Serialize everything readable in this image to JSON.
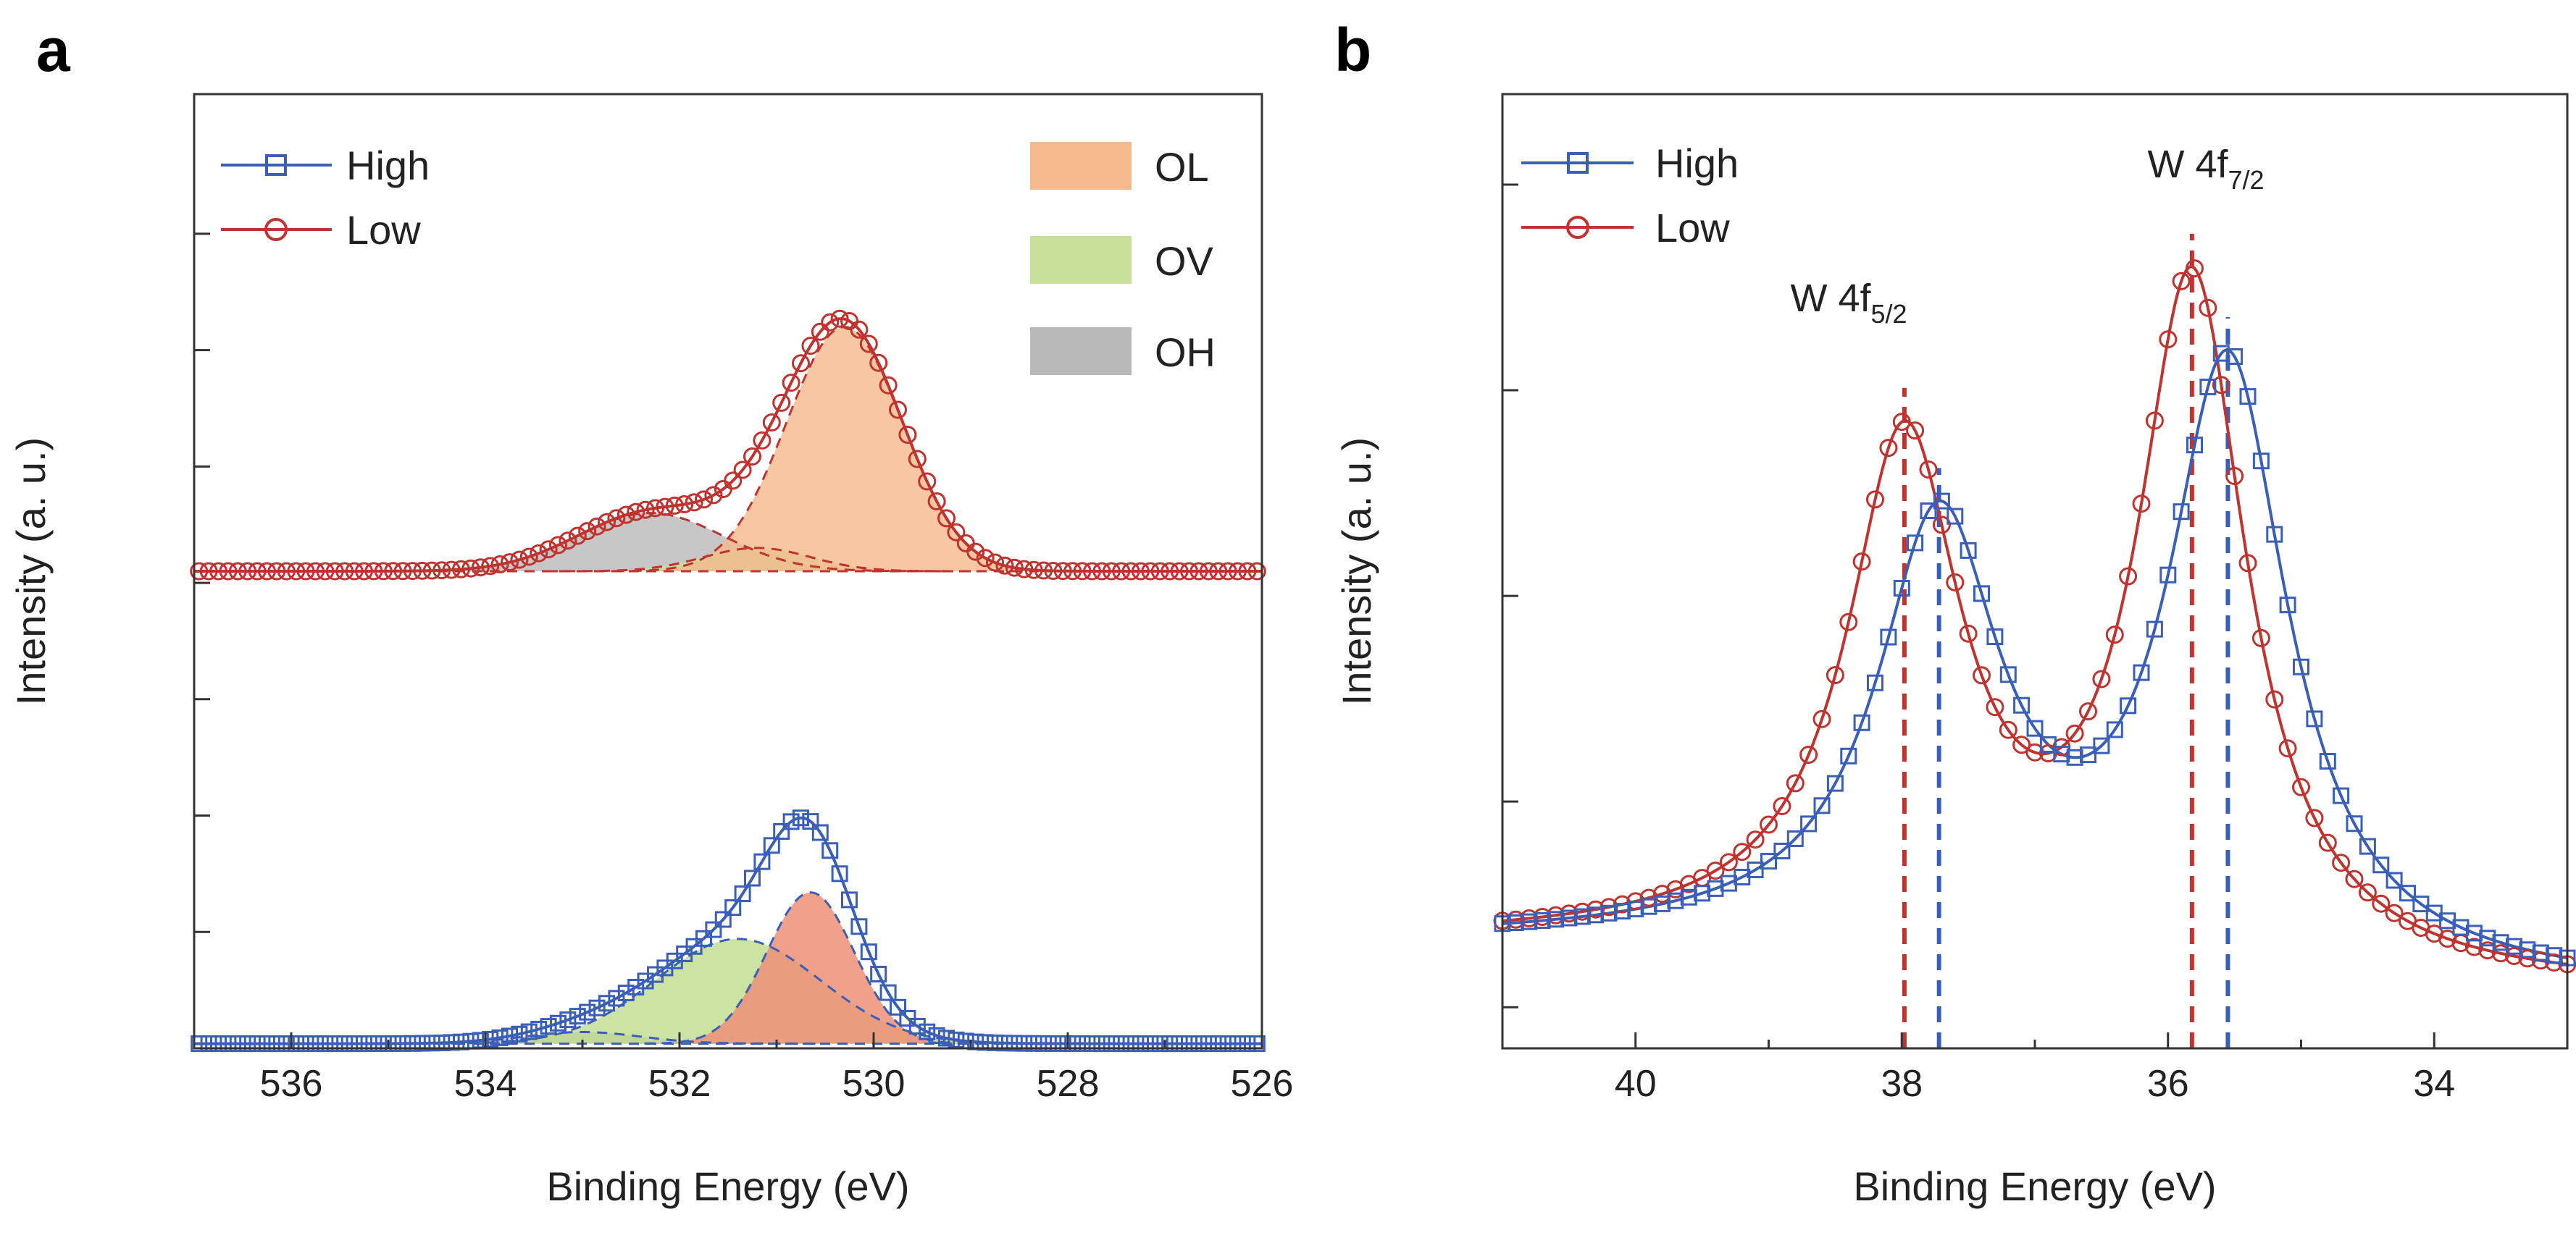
{
  "colors": {
    "high": "#3a5fb8",
    "low": "#c0332f",
    "ol": "#f5b98c",
    "ov": "#c8e09a",
    "oh": "#b9b9b9",
    "ol_high": "#ee8f78",
    "ov_high": "#bfdc8c",
    "overlap": "#b7b35c"
  },
  "chart_data": [
    {
      "panel": "a",
      "type": "line",
      "title": "",
      "xlabel": "Binding Energy (eV)",
      "ylabel": "Intensity (a. u.)",
      "xlim": [
        537,
        526
      ],
      "ylim": [
        0,
        4.1
      ],
      "x_ticks": [
        536,
        534,
        532,
        530,
        528,
        526
      ],
      "x_tick_labels": [
        "536",
        "534",
        "532",
        "530",
        "528",
        "526"
      ],
      "y_ticks": [
        0,
        0.5,
        1.0,
        1.5,
        2.0,
        2.5,
        3.0,
        3.5
      ],
      "y_tick_labels": [
        "",
        "",
        "",
        "",
        "",
        "",
        "",
        ""
      ],
      "legend": [
        {
          "name": "High",
          "marker": "square",
          "color_key": "high"
        },
        {
          "name": "Low",
          "marker": "circle",
          "color_key": "low"
        }
      ],
      "fill_legend": [
        {
          "name": "OL",
          "color_key": "ol"
        },
        {
          "name": "OV",
          "color_key": "ov"
        },
        {
          "name": "OH",
          "color_key": "oh"
        }
      ],
      "series": [
        {
          "name": "Low",
          "baseline": 2.05,
          "components": [
            {
              "label": "OL",
              "center": 530.3,
              "sigma": 0.6,
              "amp": 1.05
            },
            {
              "label": "OV",
              "center": 531.2,
              "sigma": 0.55,
              "amp": 0.1
            },
            {
              "label": "OH",
              "center": 532.3,
              "sigma": 0.75,
              "amp": 0.25
            }
          ]
        },
        {
          "name": "High",
          "baseline": 0.02,
          "components": [
            {
              "label": "OL",
              "center": 530.65,
              "sigma": 0.45,
              "amp": 0.65
            },
            {
              "label": "OV",
              "center": 531.4,
              "sigma": 0.85,
              "amp": 0.45
            },
            {
              "label": "OH",
              "center": 533.0,
              "sigma": 0.6,
              "amp": 0.05
            }
          ]
        }
      ]
    },
    {
      "panel": "b",
      "type": "line",
      "title": "",
      "xlabel": "Binding Energy (eV)",
      "ylabel": "Intensity (a. u.)",
      "xlim": [
        41,
        33
      ],
      "ylim": [
        0,
        1.16
      ],
      "x_ticks": [
        40,
        38,
        36,
        34
      ],
      "x_tick_labels": [
        "40",
        "38",
        "36",
        "34"
      ],
      "y_ticks": [
        0.05,
        0.3,
        0.55,
        0.8,
        1.05
      ],
      "y_tick_labels": [
        "",
        "",
        "",
        "",
        ""
      ],
      "legend": [
        {
          "name": "High",
          "marker": "square",
          "color_key": "high"
        },
        {
          "name": "Low",
          "marker": "circle",
          "color_key": "low"
        }
      ],
      "series": [
        {
          "name": "Low",
          "peaks": [
            {
              "center": 37.98,
              "width": 0.52,
              "amp": 0.6
            },
            {
              "center": 35.82,
              "width": 0.5,
              "amp": 0.84
            }
          ],
          "background": {
            "left": 0.13,
            "right": 0.07,
            "step_center": 37.0,
            "step_width": 0.6
          }
        },
        {
          "name": "High",
          "peaks": [
            {
              "center": 37.72,
              "width": 0.56,
              "amp": 0.5
            },
            {
              "center": 35.55,
              "width": 0.55,
              "amp": 0.74
            }
          ],
          "background": {
            "left": 0.13,
            "right": 0.07,
            "step_center": 36.7,
            "step_width": 0.6
          }
        }
      ],
      "reference_lines": [
        {
          "x": 37.98,
          "color_key": "low"
        },
        {
          "x": 37.72,
          "color_key": "high"
        },
        {
          "x": 35.82,
          "color_key": "low"
        },
        {
          "x": 35.55,
          "color_key": "high"
        }
      ],
      "annotations": [
        {
          "label": "W 4f",
          "sub": "5/2",
          "x": 37.85
        },
        {
          "label": "W 4f",
          "sub": "7/2",
          "x": 35.7
        }
      ]
    }
  ]
}
